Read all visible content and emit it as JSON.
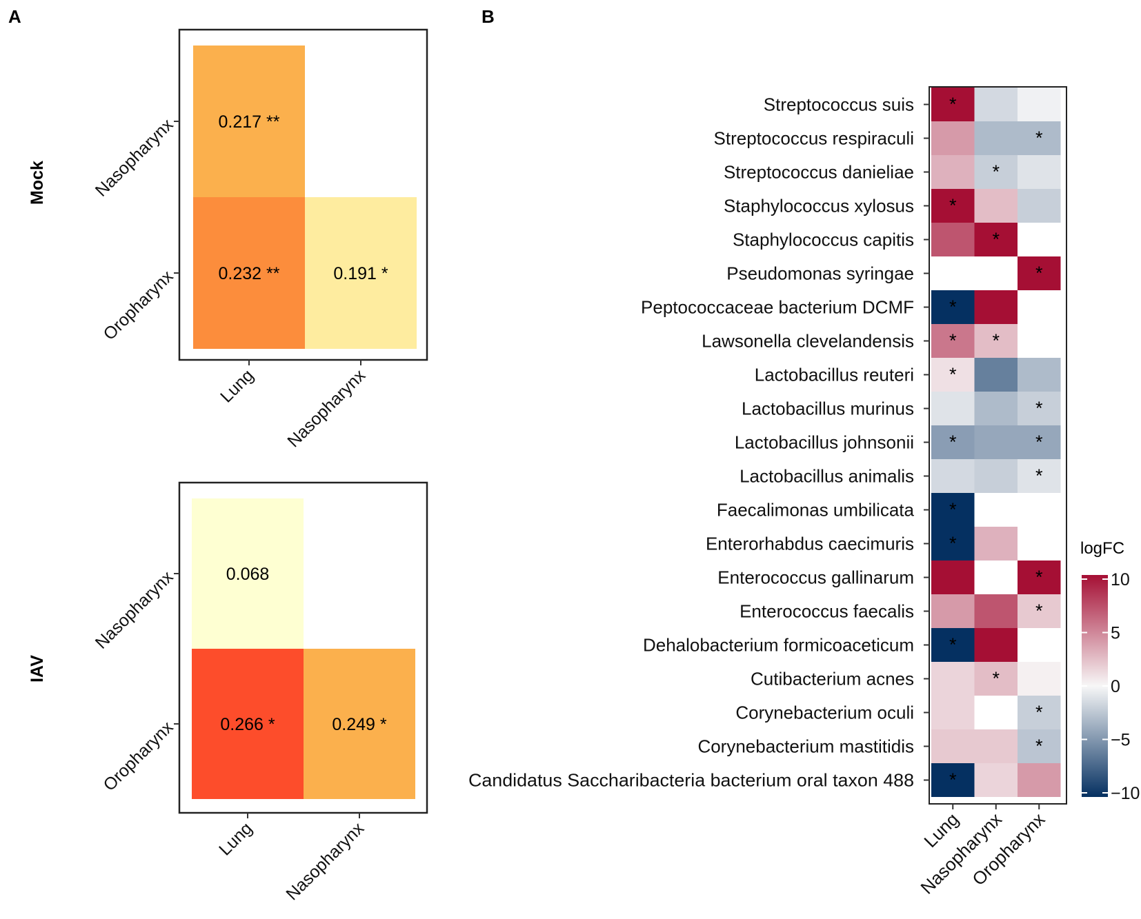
{
  "panel_a_label": "A",
  "panel_b_label": "B",
  "chart_data": [
    {
      "type": "heatmap",
      "group_label": "Mock",
      "rows": [
        "Nasopharynx",
        "Oropharynx"
      ],
      "cols": [
        "Lung",
        "Nasopharynx"
      ],
      "cells": [
        {
          "row": "Nasopharynx",
          "col": "Lung",
          "value": 0.217,
          "label": "0.217 **",
          "color": "#FBB04D"
        },
        {
          "row": "Oropharynx",
          "col": "Lung",
          "value": 0.232,
          "label": "0.232 **",
          "color": "#FC8D3C"
        },
        {
          "row": "Oropharynx",
          "col": "Nasopharynx",
          "value": 0.191,
          "label": "0.191 *",
          "color": "#FEEC9F"
        }
      ]
    },
    {
      "type": "heatmap",
      "group_label": "IAV",
      "rows": [
        "Nasopharynx",
        "Oropharynx"
      ],
      "cols": [
        "Lung",
        "Nasopharynx"
      ],
      "cells": [
        {
          "row": "Nasopharynx",
          "col": "Lung",
          "value": 0.068,
          "label": "0.068",
          "color": "#FEFFD2"
        },
        {
          "row": "Oropharynx",
          "col": "Lung",
          "value": 0.266,
          "label": "0.266 *",
          "color": "#FD4D2B"
        },
        {
          "row": "Oropharynx",
          "col": "Nasopharynx",
          "value": 0.249,
          "label": "0.249 *",
          "color": "#FBB04D"
        }
      ]
    },
    {
      "type": "heatmap",
      "cols": [
        "Lung",
        "Nasopharynx",
        "Oropharynx"
      ],
      "rows": [
        "Streptococcus suis",
        "Streptococcus respiraculi",
        "Streptococcus danieliae",
        "Staphylococcus xylosus",
        "Staphylococcus capitis",
        "Pseudomonas syringae",
        "Peptococcaceae bacterium DCMF",
        "Lawsonella clevelandensis",
        "Lactobacillus reuteri",
        "Lactobacillus murinus",
        "Lactobacillus johnsonii",
        "Lactobacillus animalis",
        "Faecalimonas umbilicata",
        "Enterorhabdus caecimuris",
        "Enterococcus gallinarum",
        "Enterococcus faecalis",
        "Dehalobacterium formicoaceticum",
        "Cutibacterium acnes",
        "Corynebacterium oculi",
        "Corynebacterium mastitidis",
        "Candidatus Saccharibacteria bacterium oral taxon 488"
      ],
      "values": [
        [
          10,
          -1.5,
          -0.3
        ],
        [
          4,
          -3,
          -3
        ],
        [
          3,
          -2,
          -1
        ],
        [
          10,
          2.5,
          -2
        ],
        [
          7,
          10,
          null
        ],
        [
          null,
          null,
          10
        ],
        [
          -10,
          10,
          null
        ],
        [
          5.5,
          2.5,
          null
        ],
        [
          1,
          -6,
          -3
        ],
        [
          -1,
          -3,
          -2
        ],
        [
          -4.5,
          -4,
          -4
        ],
        [
          -1.5,
          -2,
          -1
        ],
        [
          -10,
          null,
          null
        ],
        [
          -10,
          3,
          null
        ],
        [
          10,
          null,
          10
        ],
        [
          4,
          7,
          2
        ],
        [
          -10,
          10,
          null
        ],
        [
          1.5,
          2.5,
          0.3
        ],
        [
          1.5,
          null,
          -2
        ],
        [
          2,
          2,
          -2.5
        ],
        [
          -10,
          1.5,
          4
        ]
      ],
      "significant": [
        [
          true,
          false,
          false
        ],
        [
          false,
          false,
          true
        ],
        [
          false,
          true,
          false
        ],
        [
          true,
          false,
          false
        ],
        [
          false,
          true,
          false
        ],
        [
          false,
          false,
          true
        ],
        [
          true,
          false,
          false
        ],
        [
          true,
          true,
          false
        ],
        [
          true,
          false,
          false
        ],
        [
          false,
          false,
          true
        ],
        [
          true,
          false,
          true
        ],
        [
          false,
          false,
          true
        ],
        [
          true,
          false,
          false
        ],
        [
          true,
          false,
          false
        ],
        [
          false,
          false,
          true
        ],
        [
          false,
          false,
          true
        ],
        [
          true,
          false,
          false
        ],
        [
          false,
          true,
          false
        ],
        [
          false,
          false,
          true
        ],
        [
          false,
          false,
          true
        ],
        [
          true,
          false,
          false
        ]
      ],
      "significance_marker": "*",
      "legend": {
        "title": "logFC",
        "ticks": [
          10,
          5,
          0,
          -5,
          -10
        ],
        "tick_labels": [
          "10",
          "5",
          "0",
          "−5",
          "−10"
        ],
        "range": [
          -10,
          10
        ],
        "low_color": "#053061",
        "mid_color": "#F7F7F7",
        "high_color": "#A50F34"
      }
    }
  ]
}
